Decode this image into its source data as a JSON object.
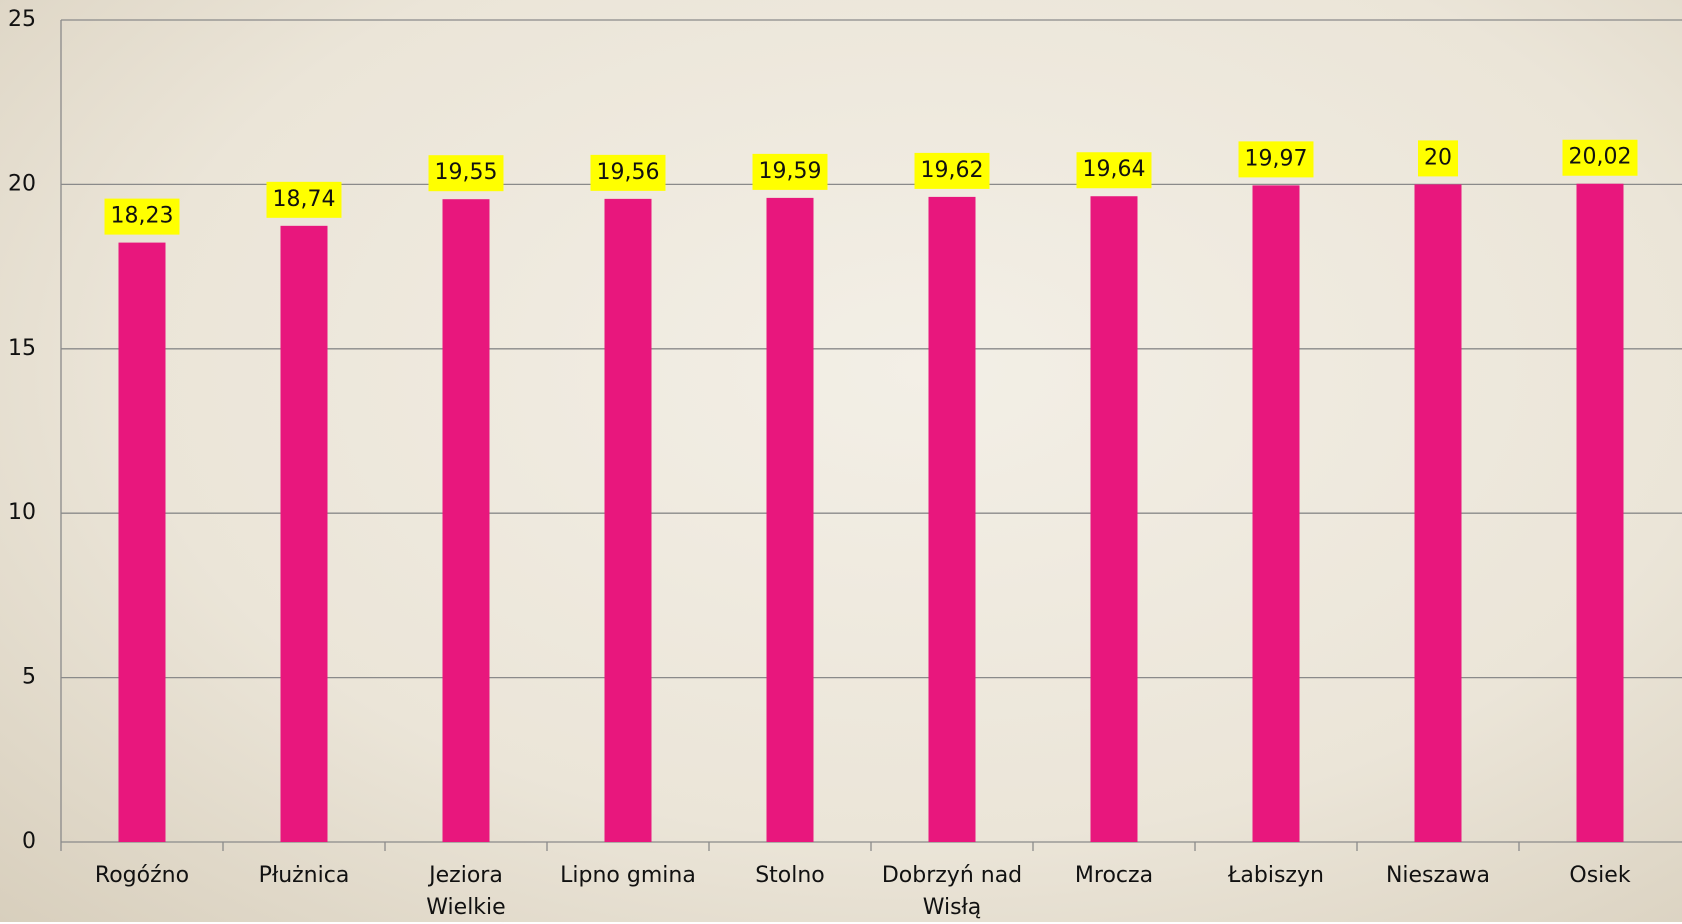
{
  "chart_data": {
    "type": "bar",
    "categories": [
      "Rogóźno",
      "Płużnica",
      "Jeziora Wielkie",
      "Lipno gmina",
      "Stolno",
      "Dobrzyń nad Wisłą",
      "Mrocza",
      "Łabiszyn",
      "Nieszawa",
      "Osiek"
    ],
    "values": [
      18.23,
      18.74,
      19.55,
      19.56,
      19.59,
      19.62,
      19.64,
      19.97,
      20,
      20.02
    ],
    "value_labels": [
      "18,23",
      "18,74",
      "19,55",
      "19,56",
      "19,59",
      "19,62",
      "19,64",
      "19,97",
      "20",
      "20,02"
    ],
    "color": "#e8177d",
    "label_background": "#ffff00",
    "ylim": [
      0,
      25
    ],
    "yticks": [
      0,
      5,
      10,
      15,
      20,
      25
    ],
    "grid": true
  }
}
